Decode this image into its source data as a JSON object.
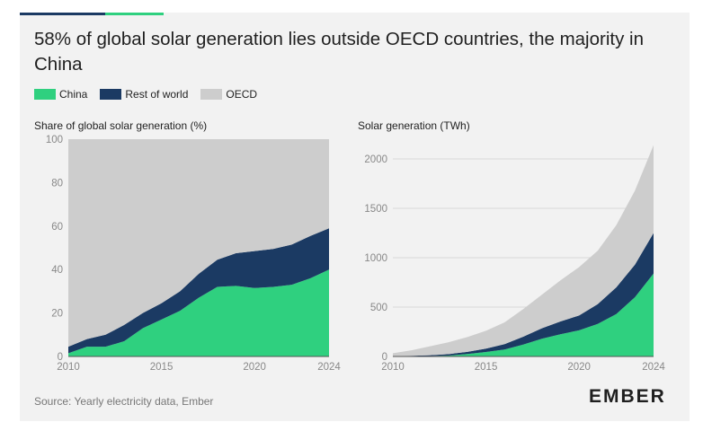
{
  "title": "58% of global solar generation lies outside OECD countries, the majority in China",
  "colors": {
    "china": "#2fd07f",
    "rest_of_world": "#1b3a63",
    "oecd": "#cdcdcd",
    "bar_dark": "#1b3a63",
    "bar_green": "#2fd07f",
    "grid": "#d8d8d8",
    "baseline": "#555555"
  },
  "legend": [
    {
      "label": "China",
      "color": "#2fd07f"
    },
    {
      "label": "Rest of world",
      "color": "#1b3a63"
    },
    {
      "label": "OECD",
      "color": "#cdcdcd"
    }
  ],
  "source": "Source: Yearly electricity data, Ember",
  "logo": "EMBER",
  "chart_data": [
    {
      "type": "area",
      "stacked": true,
      "title": "Share of global solar generation (%)",
      "x": [
        2010,
        2011,
        2012,
        2013,
        2014,
        2015,
        2016,
        2017,
        2018,
        2019,
        2020,
        2021,
        2022,
        2023,
        2024
      ],
      "series": [
        {
          "name": "China",
          "values": [
            1.5,
            4.5,
            4.5,
            7,
            13,
            17,
            21,
            27,
            32,
            32.5,
            31.5,
            32,
            33,
            36,
            40
          ]
        },
        {
          "name": "Rest of world",
          "values": [
            3,
            3.5,
            5.5,
            7.5,
            7,
            7.5,
            9,
            11,
            12.5,
            15,
            17,
            17.5,
            18.5,
            19.5,
            19
          ]
        },
        {
          "name": "OECD",
          "values": [
            95.5,
            92,
            90,
            85.5,
            80,
            75.5,
            70,
            62,
            55.5,
            52.5,
            51.5,
            50.5,
            48.5,
            44.5,
            41
          ]
        }
      ],
      "ylim": [
        0,
        100
      ],
      "yticks": [
        0,
        20,
        40,
        60,
        80,
        100
      ],
      "xticks": [
        2010,
        2015,
        2020,
        2024
      ]
    },
    {
      "type": "area",
      "stacked": true,
      "title": "Solar generation (TWh)",
      "x": [
        2010,
        2011,
        2012,
        2013,
        2014,
        2015,
        2016,
        2017,
        2018,
        2019,
        2020,
        2021,
        2022,
        2023,
        2024
      ],
      "series": [
        {
          "name": "China",
          "values": [
            1,
            3,
            5,
            9,
            25,
            45,
            70,
            120,
            180,
            225,
            265,
            330,
            430,
            600,
            840
          ]
        },
        {
          "name": "Rest of world",
          "values": [
            2,
            4,
            8,
            15,
            22,
            35,
            55,
            80,
            105,
            130,
            150,
            200,
            270,
            330,
            410
          ]
        },
        {
          "name": "OECD",
          "values": [
            30,
            55,
            90,
            120,
            150,
            180,
            220,
            280,
            340,
            415,
            490,
            540,
            630,
            750,
            890
          ]
        }
      ],
      "ylim": [
        0,
        2200
      ],
      "yticks": [
        0,
        500,
        1000,
        1500,
        2000
      ],
      "xticks": [
        2010,
        2015,
        2020,
        2024
      ]
    }
  ]
}
